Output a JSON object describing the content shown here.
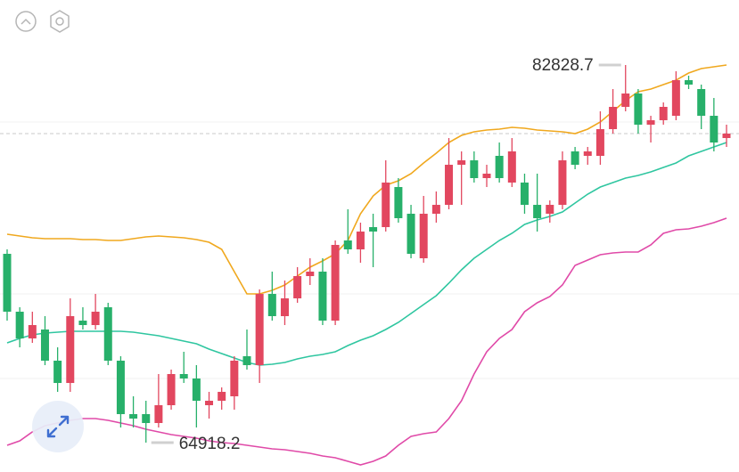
{
  "chart_data": {
    "type": "candlestick",
    "up_color": "#e2475f",
    "down_color": "#27b06a",
    "ylim": [
      63525,
      85912
    ],
    "open": [
      73873,
      71128,
      69860,
      70283,
      68805,
      67748,
      70705,
      70494,
      71339,
      68805,
      66270,
      66270,
      65848,
      66693,
      68171,
      67960,
      66693,
      66904,
      67115,
      69016,
      68593,
      71972,
      70917,
      71761,
      72817,
      73029,
      70705,
      74507,
      74084,
      75140,
      75140,
      77041,
      75774,
      73662,
      75774,
      76196,
      78097,
      78308,
      77464,
      78520,
      77253,
      77253,
      76196,
      75774,
      76196,
      78731,
      78520,
      78520,
      79787,
      80843,
      81477,
      79998,
      80209,
      80420,
      82110,
      81688,
      80420,
      79364
    ],
    "high": [
      74084,
      71339,
      71128,
      70917,
      69438,
      71761,
      71339,
      71972,
      71550,
      69016,
      67115,
      66904,
      68171,
      68382,
      69227,
      68593,
      67326,
      67537,
      69016,
      70283,
      72184,
      73029,
      72606,
      73240,
      73662,
      73662,
      74507,
      75985,
      75352,
      75774,
      78308,
      77464,
      76196,
      76619,
      76830,
      79364,
      78731,
      78731,
      78097,
      79153,
      79364,
      77675,
      77675,
      76408,
      78731,
      78942,
      78942,
      80632,
      81688,
      82828.7,
      81688,
      80420,
      81054,
      82532,
      82321,
      81899,
      81265,
      79998
    ],
    "low": [
      70705,
      69438,
      69649,
      68593,
      67326,
      67326,
      70283,
      70283,
      68593,
      65636,
      65636,
      64918.2,
      65636,
      66481,
      67748,
      65636,
      66059,
      66481,
      66481,
      68382,
      67748,
      70705,
      70494,
      71550,
      72395,
      70494,
      70494,
      73873,
      73451,
      73240,
      74929,
      75352,
      73662,
      73451,
      75352,
      75985,
      76196,
      77253,
      77041,
      77253,
      77041,
      75774,
      74929,
      75352,
      75985,
      77886,
      78097,
      78097,
      79576,
      80632,
      79576,
      79153,
      79998,
      80209,
      81688,
      79787,
      78731,
      78942
    ],
    "close": [
      71128,
      69860,
      70494,
      68805,
      67748,
      70917,
      70494,
      71128,
      68805,
      66270,
      66059,
      65848,
      66693,
      68171,
      67960,
      66904,
      66904,
      67326,
      68805,
      68593,
      71972,
      70917,
      71761,
      72817,
      73029,
      70705,
      74296,
      74084,
      74929,
      74929,
      77253,
      75563,
      73873,
      75774,
      76196,
      78097,
      78308,
      77464,
      77675,
      77464,
      78731,
      76196,
      75563,
      76196,
      78308,
      78097,
      78731,
      79787,
      80843,
      81477,
      79998,
      80209,
      80843,
      82110,
      81899,
      80420,
      79153,
      79576
    ],
    "bands": [
      {
        "color": "#f0a81e",
        "values": [
          74802,
          74718,
          74634,
          74592,
          74592,
          74592,
          74549,
          74549,
          74507,
          74507,
          74592,
          74676,
          74718,
          74676,
          74634,
          74549,
          74423,
          74084,
          73029,
          71972,
          71972,
          72142,
          72395,
          72817,
          73240,
          73536,
          73873,
          74507,
          75774,
          76619,
          77126,
          77337,
          77675,
          78182,
          78646,
          79153,
          79491,
          79660,
          79745,
          79787,
          79871,
          79829,
          79745,
          79702,
          79660,
          79576,
          79787,
          80124,
          80632,
          81139,
          81561,
          81688,
          81899,
          82110,
          82448,
          82659,
          82744,
          82829
        ]
      },
      {
        "color": "#2fc6a0",
        "values": [
          69649,
          69860,
          70029,
          70114,
          70156,
          70198,
          70198,
          70198,
          70198,
          70198,
          70156,
          70072,
          69987,
          69860,
          69733,
          69607,
          69353,
          69142,
          68931,
          68720,
          68593,
          68636,
          68720,
          68889,
          69016,
          69100,
          69227,
          69522,
          69776,
          69987,
          70283,
          70621,
          71044,
          71466,
          71888,
          72479,
          73113,
          73662,
          74084,
          74507,
          74845,
          75267,
          75478,
          75647,
          75859,
          76281,
          76704,
          77041,
          77253,
          77464,
          77591,
          77760,
          77971,
          78182,
          78520,
          78731,
          78942,
          79153
        ]
      },
      {
        "color": "#e04aa8",
        "values": [
          64792,
          65003,
          65425,
          65721,
          65848,
          65974,
          66059,
          66059,
          65974,
          65848,
          65721,
          65552,
          65425,
          65298,
          65214,
          65130,
          65003,
          64918,
          64876,
          64792,
          64707,
          64623,
          64581,
          64496,
          64412,
          64285,
          64200,
          64031,
          63862,
          64031,
          64285,
          64792,
          65214,
          65341,
          65425,
          66059,
          66904,
          68171,
          69227,
          69860,
          70283,
          71128,
          71550,
          71846,
          72395,
          73324,
          73578,
          73831,
          73916,
          73958,
          73958,
          74296,
          74845,
          75014,
          75056,
          75183,
          75352,
          75563
        ]
      }
    ]
  }
}
